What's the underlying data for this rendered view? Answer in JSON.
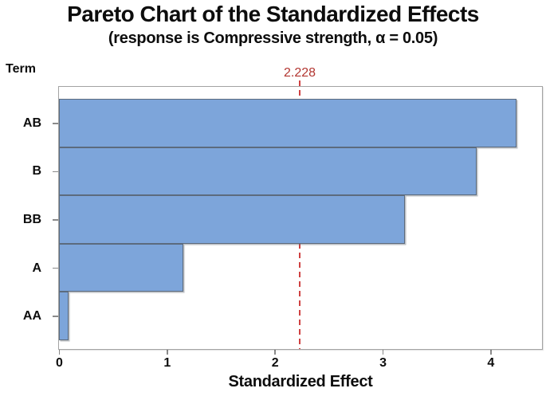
{
  "title": "Pareto Chart of the Standardized Effects",
  "subtitle": "(response is Compressive strength, α = 0.05)",
  "axes": {
    "y_title": "Term",
    "x_title": "Standardized Effect"
  },
  "reference_line": {
    "label": "2.228",
    "value": 2.228,
    "color": "#b23530"
  },
  "chart_data": {
    "type": "bar",
    "orientation": "horizontal",
    "title": "Pareto Chart of the Standardized Effects",
    "subtitle": "(response is Compressive strength, α = 0.05)",
    "xlabel": "Standardized Effect",
    "ylabel": "Term",
    "categories": [
      "AB",
      "B",
      "BB",
      "A",
      "AA"
    ],
    "values": [
      4.24,
      3.87,
      3.21,
      1.15,
      0.09
    ],
    "xlim": [
      0,
      4.47
    ],
    "x_ticks": [
      0,
      1,
      2,
      3,
      4
    ],
    "reference_line": 2.228,
    "reference_line_label": "2.228",
    "grid": false,
    "legend": "none",
    "bar_color": "#7da5da",
    "bar_border_color": "#5c6b7d",
    "reference_color": "#cf4141"
  }
}
